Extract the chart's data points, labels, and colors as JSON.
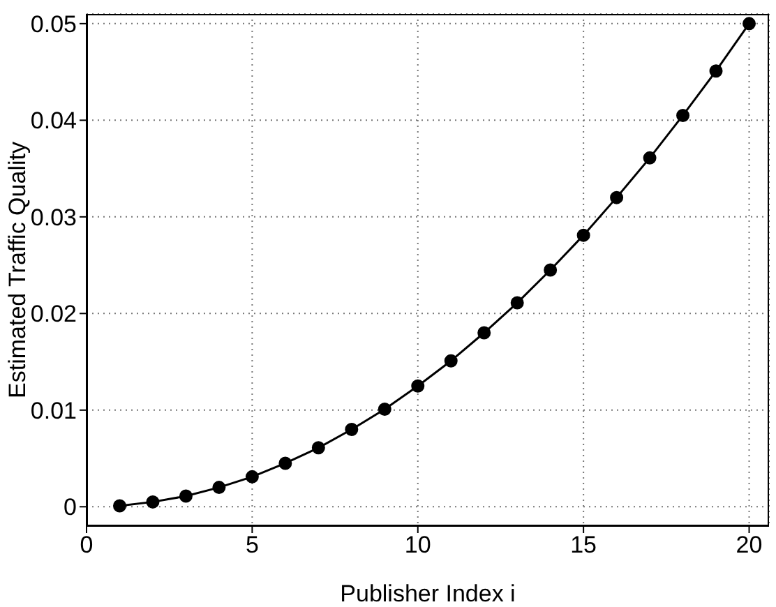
{
  "chart_data": {
    "type": "line",
    "xlabel": "Publisher Index i",
    "ylabel": "Estimated Traffic Quality",
    "x": [
      1,
      2,
      3,
      4,
      5,
      6,
      7,
      8,
      9,
      10,
      11,
      12,
      13,
      14,
      15,
      16,
      17,
      18,
      19,
      20
    ],
    "series": [
      {
        "color": "#000000",
        "values": [
          0.0001,
          0.0005,
          0.0011,
          0.002,
          0.0031,
          0.0045,
          0.0061,
          0.008,
          0.0101,
          0.0125,
          0.0151,
          0.018,
          0.0211,
          0.0245,
          0.0281,
          0.032,
          0.0361,
          0.0405,
          0.0451,
          0.05
        ]
      }
    ],
    "xlim": [
      0,
      20.6
    ],
    "xticks": [
      0,
      5,
      10,
      15,
      20
    ],
    "ylim": [
      -0.002,
      0.051
    ],
    "yticks": [
      0,
      0.01,
      0.02,
      0.03,
      0.04,
      0.05
    ],
    "grid": true,
    "marker": "circle",
    "line_style": "solid"
  }
}
